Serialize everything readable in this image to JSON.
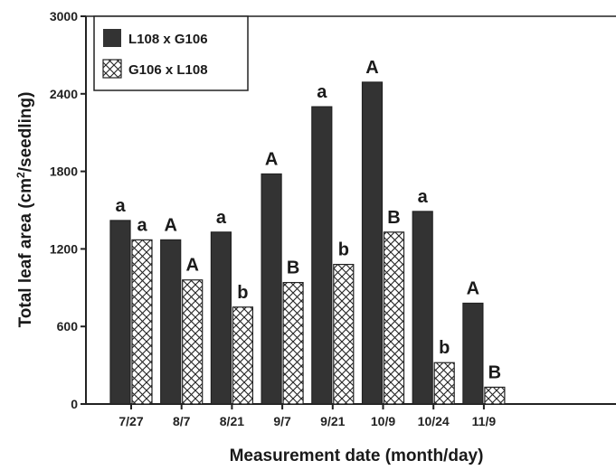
{
  "chart_data": {
    "type": "bar",
    "title": "",
    "xlabel": "Measurement date (month/day)",
    "ylabel": "Total leaf area (cm²/seedling)",
    "ylabel_main": "Total leaf area (cm",
    "ylabel_sup": "2",
    "ylabel_tail": "/seedling)",
    "ylim": [
      0,
      3000
    ],
    "yticks": [
      0,
      600,
      1200,
      1800,
      2400,
      3000
    ],
    "ytick_labels": [
      "0",
      "600",
      "1200",
      "1800",
      "2400",
      "3000"
    ],
    "categories": [
      "7/27",
      "8/7",
      "8/21",
      "9/7",
      "9/21",
      "10/9",
      "10/24",
      "11/9"
    ],
    "series": [
      {
        "name": "L108 x G106",
        "fill": "#333333",
        "values": [
          1420,
          1270,
          1330,
          1780,
          2300,
          2490,
          1490,
          780
        ],
        "labels": [
          "a",
          "A",
          "a",
          "A",
          "a",
          "A",
          "a",
          "A"
        ]
      },
      {
        "name": "G106 x L108",
        "fill": "hatch",
        "values": [
          1270,
          960,
          750,
          940,
          1080,
          1330,
          320,
          130
        ],
        "labels": [
          "a",
          "A",
          "b",
          "B",
          "b",
          "B",
          "b",
          "B"
        ]
      }
    ],
    "legend_position": "top-left",
    "grid": false
  }
}
